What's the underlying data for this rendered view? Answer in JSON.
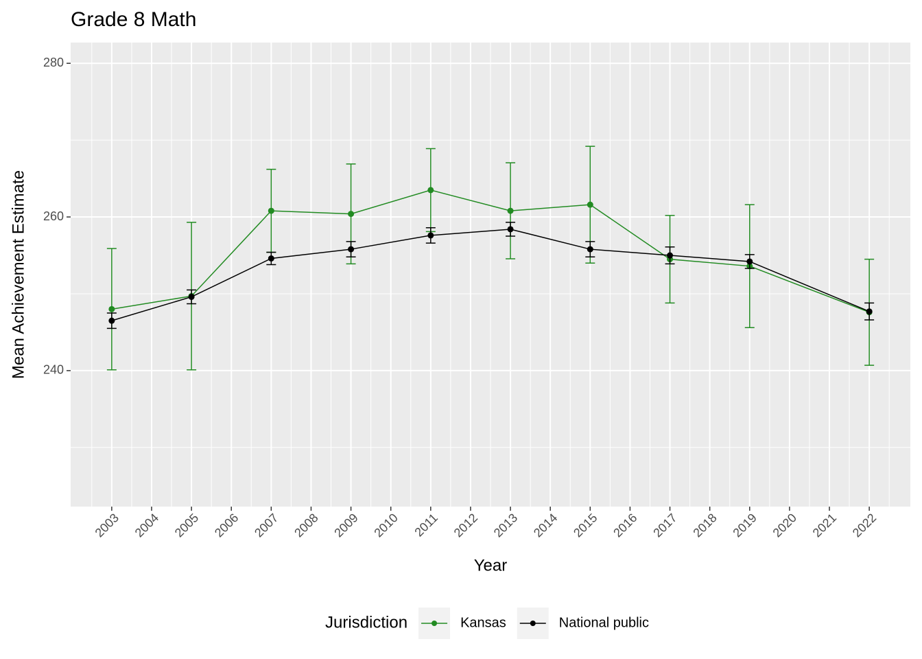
{
  "chart_data": {
    "type": "line",
    "title": "Grade 8 Math",
    "x_label": "Year",
    "y_label": "Mean Achievement Estimate",
    "x": [
      2003,
      2005,
      2007,
      2009,
      2011,
      2013,
      2015,
      2017,
      2019,
      2022
    ],
    "series": [
      {
        "name": "Kansas",
        "color": "#228b22",
        "values": [
          248.0,
          249.7,
          260.8,
          260.4,
          263.5,
          260.8,
          261.6,
          254.5,
          253.6,
          247.6
        ],
        "errors": [
          7.9,
          9.6,
          5.4,
          6.5,
          5.4,
          6.25,
          7.6,
          5.7,
          8.0,
          6.9
        ]
      },
      {
        "name": "National public",
        "color": "#000000",
        "values": [
          246.5,
          249.6,
          254.6,
          255.8,
          257.6,
          258.4,
          255.8,
          255.0,
          254.2,
          247.7
        ],
        "errors": [
          1.0,
          0.9,
          0.8,
          1.0,
          1.0,
          0.9,
          1.0,
          1.1,
          0.9,
          1.1
        ]
      }
    ],
    "xlim": [
      2001.97,
      2023.03
    ],
    "xticks": [
      2003,
      2004,
      2005,
      2006,
      2007,
      2008,
      2009,
      2010,
      2011,
      2012,
      2013,
      2014,
      2015,
      2016,
      2017,
      2018,
      2019,
      2020,
      2021,
      2022
    ],
    "ylim": [
      222.3,
      282.7
    ],
    "yticks": [
      240,
      260,
      280
    ],
    "grid": true,
    "legend_title": "Jurisdiction",
    "legend_position": "bottom"
  }
}
